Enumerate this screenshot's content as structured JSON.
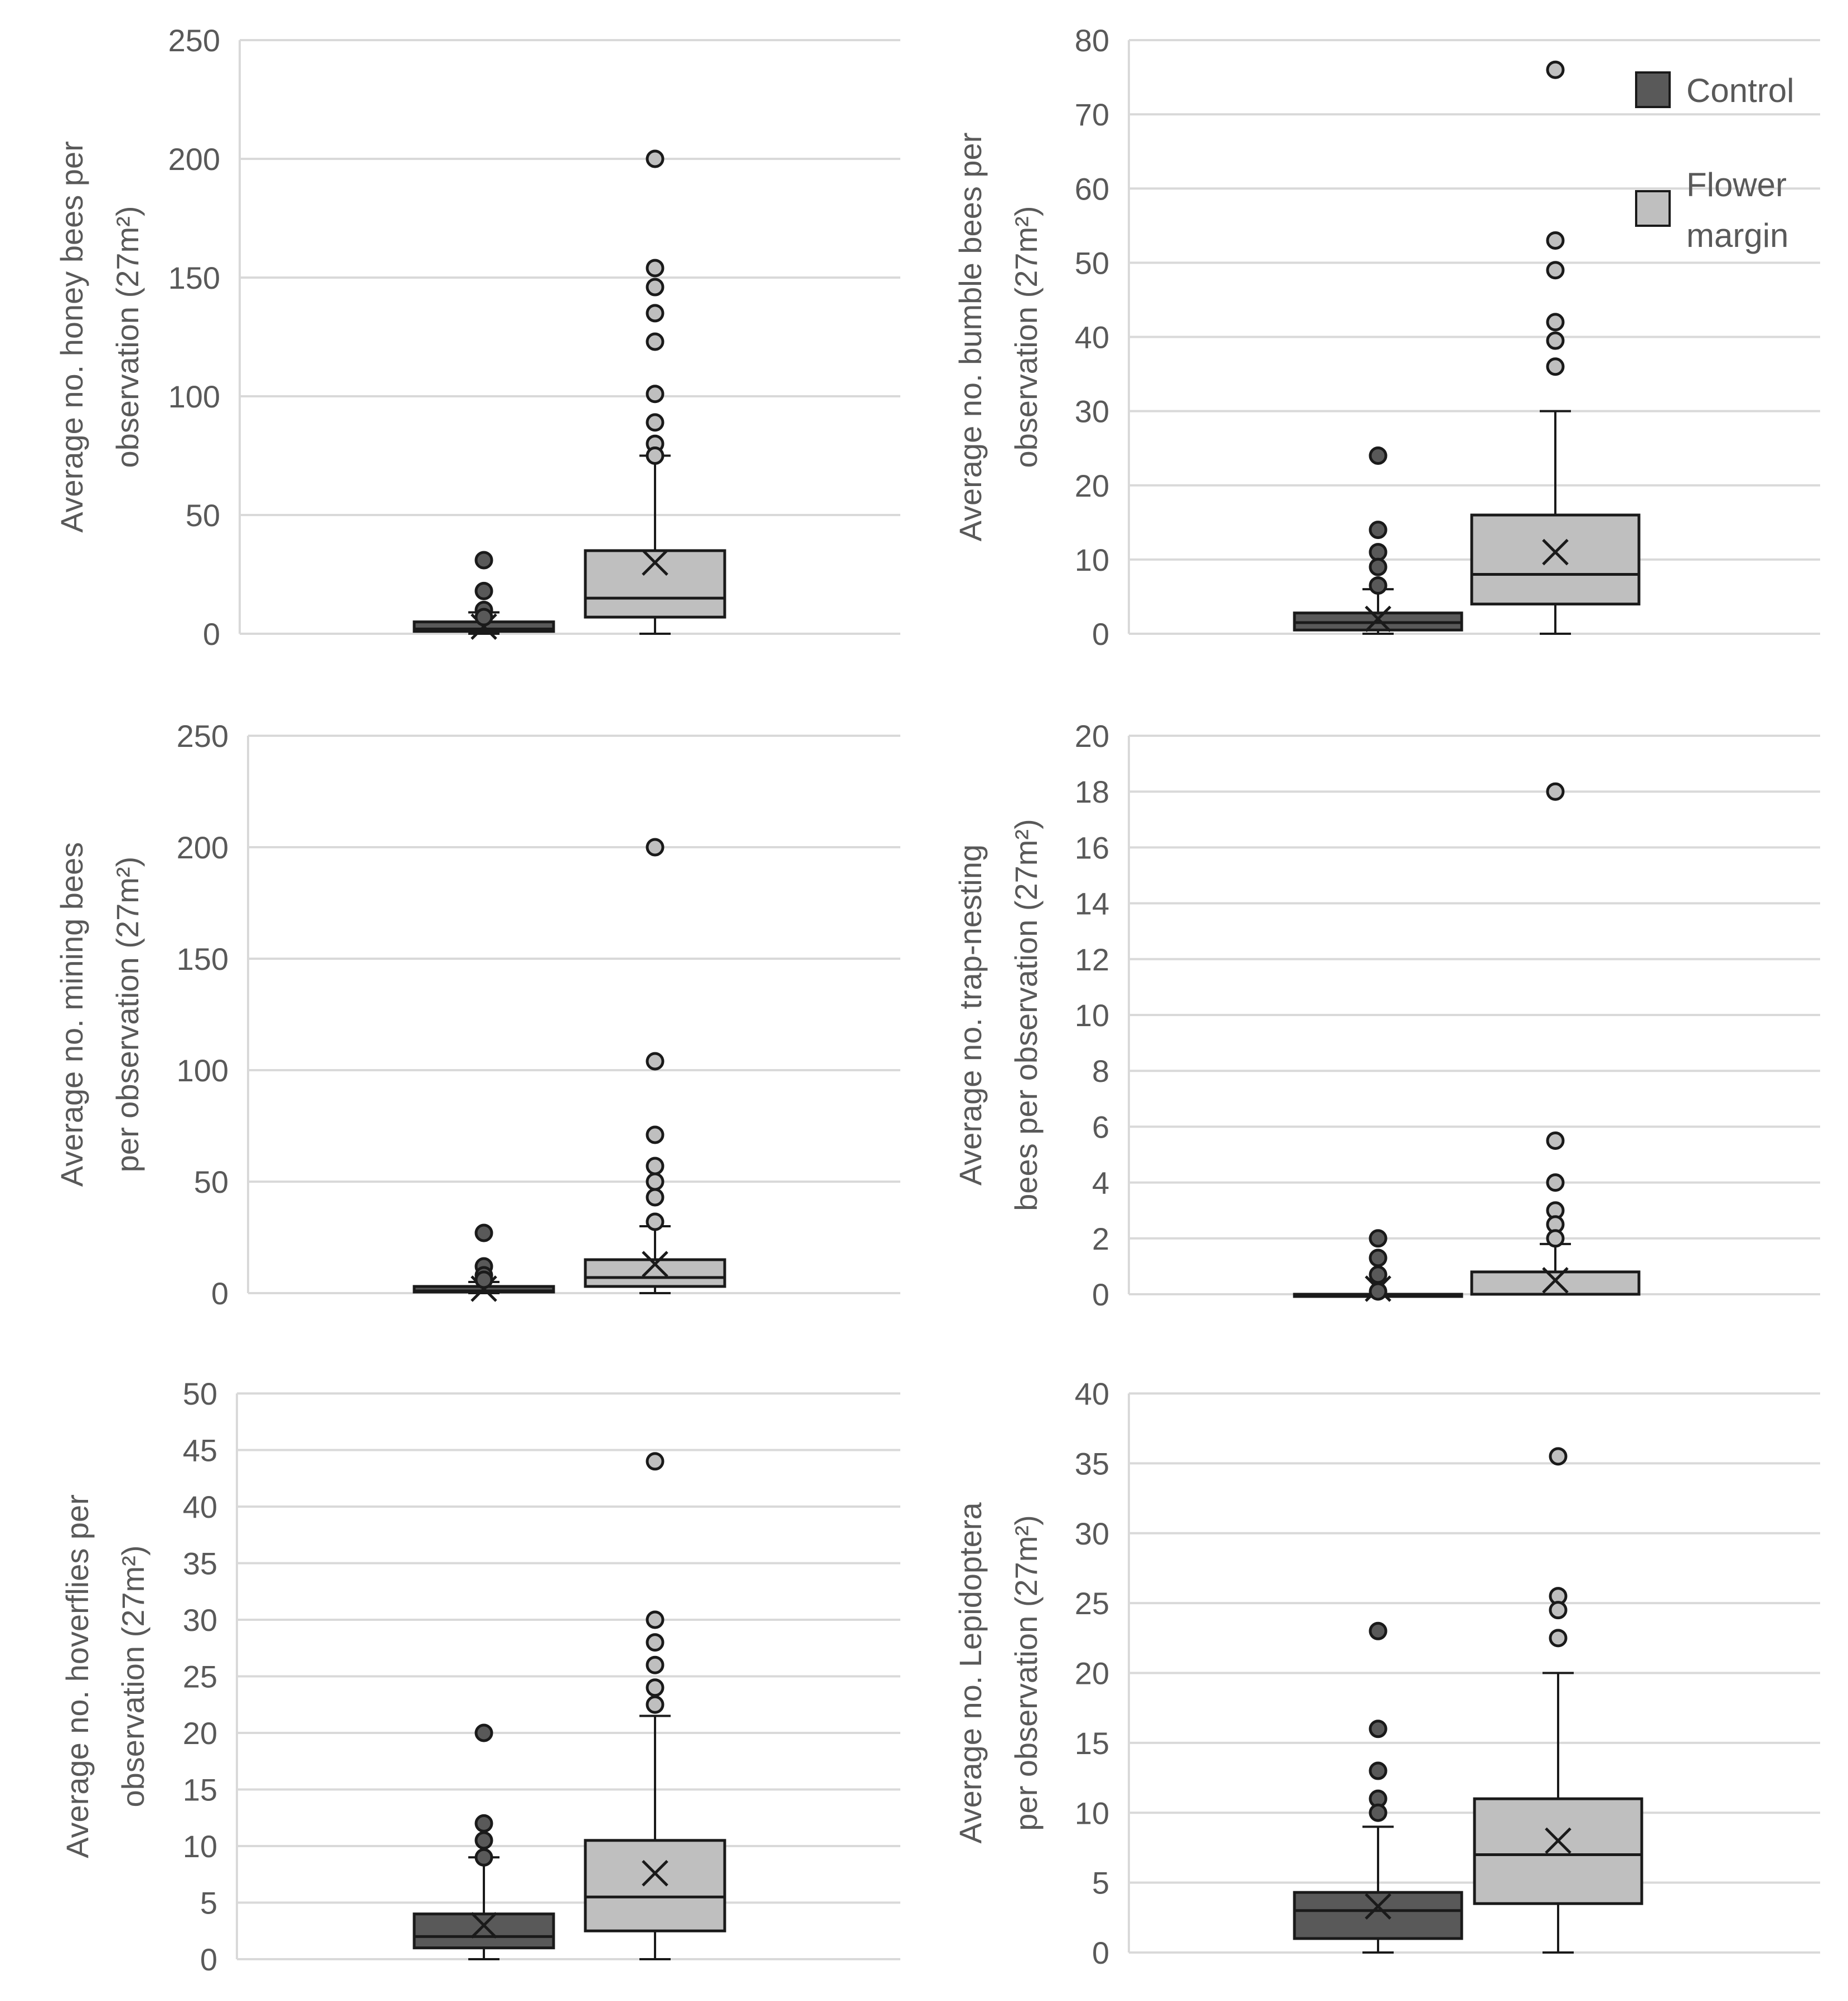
{
  "colors": {
    "control_fill": "#595959",
    "flower_fill": "#bfbfbf",
    "stroke": "#1a1a1a",
    "grid": "#d9d9d9",
    "axis_text": "#595959"
  },
  "legend": {
    "control_label": "Control",
    "flower_label_line1": "Flower",
    "flower_label_line2": "margin"
  },
  "chart_data": [
    {
      "type": "box",
      "ylabel_line1": "Average no. honey bees per",
      "ylabel_line2": "observation (27m²)",
      "ylim": [
        0,
        250
      ],
      "yticks": [
        "0",
        "50",
        "100",
        "150",
        "200",
        "250"
      ],
      "series": [
        {
          "name": "Control",
          "min": 0,
          "q1": 1,
          "median": 2,
          "q3": 5,
          "whisker_high": 9,
          "mean": 3,
          "outliers": [
            31,
            18,
            10,
            7
          ]
        },
        {
          "name": "Flower margin",
          "min": 0,
          "q1": 7,
          "median": 15,
          "q3": 35,
          "whisker_high": 75,
          "mean": 30,
          "outliers": [
            200,
            154,
            146,
            135,
            123,
            101,
            89,
            80,
            75
          ]
        }
      ]
    },
    {
      "type": "box",
      "ylabel_line1": "Average no. bumble bees per",
      "ylabel_line2": "observation (27m²)",
      "ylim": [
        0,
        80
      ],
      "yticks": [
        "0",
        "10",
        "20",
        "30",
        "40",
        "50",
        "60",
        "70",
        "80"
      ],
      "series": [
        {
          "name": "Control",
          "min": 0,
          "q1": 0.5,
          "median": 1.5,
          "q3": 2.8,
          "whisker_high": 6,
          "mean": 2,
          "outliers": [
            24,
            14,
            11,
            9,
            6.5
          ]
        },
        {
          "name": "Flower margin",
          "min": 0,
          "q1": 4,
          "median": 8,
          "q3": 16,
          "whisker_high": 30,
          "mean": 11,
          "outliers": [
            76,
            53,
            49,
            42,
            39.5,
            36
          ]
        }
      ]
    },
    {
      "type": "box",
      "ylabel_line1": "Average no. mining bees",
      "ylabel_line2": "per observation (27m²)",
      "ylim": [
        0,
        250
      ],
      "yticks": [
        "0",
        "50",
        "100",
        "150",
        "200",
        "250"
      ],
      "series": [
        {
          "name": "Control",
          "min": 0,
          "q1": 0.5,
          "median": 1,
          "q3": 3,
          "whisker_high": 5,
          "mean": 2,
          "outliers": [
            27,
            12,
            8,
            6
          ]
        },
        {
          "name": "Flower margin",
          "min": 0,
          "q1": 3,
          "median": 7,
          "q3": 15,
          "whisker_high": 30,
          "mean": 13,
          "outliers": [
            200,
            104,
            71,
            57,
            50,
            43,
            32
          ]
        }
      ]
    },
    {
      "type": "box",
      "ylabel_line1": "Average no. trap-nesting",
      "ylabel_line2": "bees per observation (27m²)",
      "ylim": [
        0,
        20
      ],
      "yticks": [
        "0",
        "2",
        "4",
        "6",
        "8",
        "10",
        "12",
        "14",
        "16",
        "18",
        "20"
      ],
      "series": [
        {
          "name": "Control",
          "min": 0,
          "q1": 0,
          "median": 0,
          "q3": 0,
          "whisker_high": 0,
          "mean": 0.2,
          "outliers": [
            2,
            1.3,
            0.7,
            0.1
          ]
        },
        {
          "name": "Flower margin",
          "min": 0,
          "q1": 0,
          "median": 0,
          "q3": 0.8,
          "whisker_high": 1.8,
          "mean": 0.5,
          "outliers": [
            18,
            5.5,
            4,
            3,
            2.5,
            2
          ]
        }
      ]
    },
    {
      "type": "box",
      "ylabel_line1": "Average no. hoverflies per",
      "ylabel_line2": "observation (27m²)",
      "ylim": [
        0,
        50
      ],
      "yticks": [
        "0",
        "5",
        "10",
        "15",
        "20",
        "25",
        "30",
        "35",
        "40",
        "45",
        "50"
      ],
      "series": [
        {
          "name": "Control",
          "min": 0,
          "q1": 1,
          "median": 2,
          "q3": 4,
          "whisker_high": 9,
          "mean": 3,
          "outliers": [
            20,
            12,
            10.5,
            9
          ]
        },
        {
          "name": "Flower margin",
          "min": 0,
          "q1": 2.5,
          "median": 5.5,
          "q3": 10.5,
          "whisker_high": 21.5,
          "mean": 7.6,
          "outliers": [
            44,
            30,
            28,
            26,
            24,
            22.5
          ]
        }
      ]
    },
    {
      "type": "box",
      "ylabel_line1": "Average no. Lepidoptera",
      "ylabel_line2": "per observation (27m²)",
      "ylim": [
        0,
        40
      ],
      "yticks": [
        "0",
        "5",
        "10",
        "15",
        "20",
        "25",
        "30",
        "35",
        "40"
      ],
      "series": [
        {
          "name": "Control",
          "min": 0,
          "q1": 1,
          "median": 3,
          "q3": 4.3,
          "whisker_high": 9,
          "mean": 3.3,
          "outliers": [
            23,
            16,
            13,
            11,
            10
          ]
        },
        {
          "name": "Flower margin",
          "min": 0,
          "q1": 3.5,
          "median": 7,
          "q3": 11,
          "whisker_high": 20,
          "mean": 8,
          "outliers": [
            35.5,
            25.5,
            24.5,
            22.5
          ]
        }
      ]
    }
  ]
}
